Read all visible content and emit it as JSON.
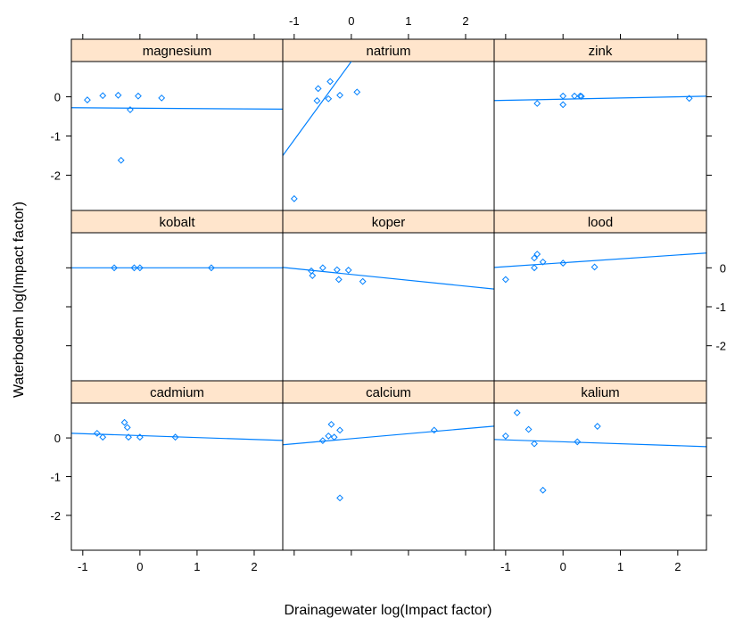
{
  "chart_data": {
    "type": "scatter",
    "layout": "lattice 3x3 panels with per-panel regression lines",
    "xlabel": "Drainagewater  log(Impact factor)",
    "ylabel": "Waterbodem log(Impact factor)",
    "xlim": [
      -1.2,
      2.5
    ],
    "ylim": [
      -2.9,
      0.9
    ],
    "x_ticks": [
      -1,
      0,
      1,
      2
    ],
    "y_ticks": [
      -2,
      -1,
      0
    ],
    "colors": {
      "points": "#0080ff",
      "line": "#0080ff",
      "strip": "#ffe5cc",
      "axis": "#000000"
    },
    "panels": [
      {
        "name": "magnesium",
        "points": [
          [
            -0.92,
            -0.08
          ],
          [
            -0.65,
            0.03
          ],
          [
            -0.38,
            0.04
          ],
          [
            -0.17,
            -0.33
          ],
          [
            -0.33,
            -1.62
          ],
          [
            -0.03,
            0.02
          ],
          [
            0.38,
            -0.03
          ]
        ],
        "fit": {
          "intercept": -0.29,
          "slope": -0.01
        }
      },
      {
        "name": "natrium",
        "points": [
          [
            -1.0,
            -2.6
          ],
          [
            -0.6,
            -0.1
          ],
          [
            -0.58,
            0.21
          ],
          [
            -0.4,
            -0.05
          ],
          [
            -0.37,
            0.39
          ],
          [
            -0.2,
            0.04
          ],
          [
            0.1,
            0.12
          ]
        ],
        "fit": {
          "intercept": 0.9,
          "slope": 2.0
        }
      },
      {
        "name": "zink",
        "points": [
          [
            -0.45,
            -0.17
          ],
          [
            0.0,
            0.02
          ],
          [
            0.0,
            -0.2
          ],
          [
            0.2,
            0.02
          ],
          [
            0.3,
            0.02
          ],
          [
            0.32,
            0.01
          ],
          [
            2.2,
            -0.04
          ]
        ],
        "fit": {
          "intercept": -0.06,
          "slope": 0.03
        }
      },
      {
        "name": "kobalt",
        "points": [
          [
            -0.45,
            0.0
          ],
          [
            -0.1,
            0.0
          ],
          [
            0.0,
            0.0
          ],
          [
            1.25,
            0.0
          ]
        ],
        "fit": {
          "intercept": 0.0,
          "slope": 0.0
        }
      },
      {
        "name": "koper",
        "points": [
          [
            -0.7,
            -0.08
          ],
          [
            -0.68,
            -0.2
          ],
          [
            -0.5,
            0.0
          ],
          [
            -0.25,
            -0.05
          ],
          [
            -0.22,
            -0.3
          ],
          [
            -0.05,
            -0.06
          ],
          [
            0.2,
            -0.35
          ]
        ],
        "fit": {
          "intercept": -0.17,
          "slope": -0.15
        }
      },
      {
        "name": "lood",
        "points": [
          [
            -1.0,
            -0.3
          ],
          [
            -0.5,
            0.25
          ],
          [
            -0.45,
            0.35
          ],
          [
            -0.5,
            0.0
          ],
          [
            -0.35,
            0.15
          ],
          [
            0.0,
            0.12
          ],
          [
            0.55,
            0.02
          ]
        ],
        "fit": {
          "intercept": 0.13,
          "slope": 0.1
        }
      },
      {
        "name": "cadmium",
        "points": [
          [
            -0.75,
            0.12
          ],
          [
            -0.65,
            0.02
          ],
          [
            -0.27,
            0.4
          ],
          [
            -0.22,
            0.27
          ],
          [
            -0.2,
            0.02
          ],
          [
            0.0,
            0.02
          ],
          [
            0.62,
            0.02
          ]
        ],
        "fit": {
          "intercept": 0.06,
          "slope": -0.05
        }
      },
      {
        "name": "calcium",
        "points": [
          [
            -0.5,
            -0.07
          ],
          [
            -0.4,
            0.05
          ],
          [
            -0.35,
            0.35
          ],
          [
            -0.3,
            0.02
          ],
          [
            -0.2,
            0.2
          ],
          [
            -0.2,
            -1.55
          ],
          [
            1.45,
            0.2
          ]
        ],
        "fit": {
          "intercept": -0.02,
          "slope": 0.13
        }
      },
      {
        "name": "kalium",
        "points": [
          [
            -1.0,
            0.05
          ],
          [
            -0.8,
            0.65
          ],
          [
            -0.6,
            0.22
          ],
          [
            -0.5,
            -0.15
          ],
          [
            -0.35,
            -1.35
          ],
          [
            0.25,
            -0.1
          ],
          [
            0.6,
            0.3
          ]
        ],
        "fit": {
          "intercept": -0.1,
          "slope": -0.05
        }
      }
    ]
  }
}
